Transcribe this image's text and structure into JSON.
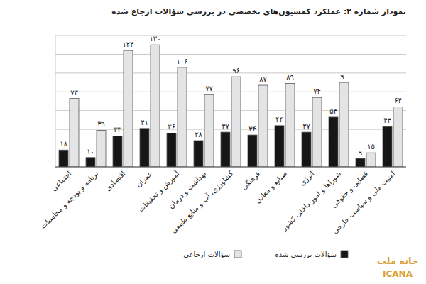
{
  "chart_data": {
    "type": "bar",
    "title": "نمودار شماره ۲: عملکرد کمسیون‌های تخصصی در بررسی سؤالات ارجاع شده",
    "categories": [
      "اجتماعی",
      "برنامه و بودجه و محاسبات",
      "اقتصادی",
      "عمران",
      "آموزش و تحقیقات",
      "بهداشت و درمان",
      "کشاورزی، آب و منابع طبیعی",
      "فرهنگی",
      "صنایع و معادن",
      "انرژی",
      "شوراها و امور داخلی کشور",
      "قضایی و حقوقی",
      "امنیت ملی و سیاست خارجی"
    ],
    "series": [
      {
        "name": "سؤالات ارجاعی",
        "color": "#e4e4e4",
        "values": [
          73,
          39,
          124,
          130,
          106,
          77,
          96,
          87,
          89,
          74,
          90,
          15,
          64
        ],
        "value_labels": [
          "۷۳",
          "۳۹",
          "۱۲۴",
          "۱۳۰",
          "۱۰۶",
          "۷۷",
          "۹۶",
          "۸۷",
          "۸۹",
          "۷۴",
          "۹۰",
          "۱۵",
          "۶۴"
        ]
      },
      {
        "name": "سؤالات بررسی شده",
        "color": "#161616",
        "values": [
          18,
          10,
          33,
          41,
          36,
          28,
          37,
          34,
          44,
          37,
          53,
          9,
          43
        ],
        "value_labels": [
          "۱۸",
          "۱۰",
          "۳۳",
          "۴۱",
          "۳۶",
          "۲۸",
          "۳۷",
          "۳۴",
          "۴۴",
          "۳۷",
          "۵۳",
          "۹",
          "۴۳"
        ]
      }
    ],
    "ylim": [
      0,
      140
    ],
    "yticks": [
      0,
      20,
      40,
      60,
      80,
      100,
      120,
      140
    ],
    "grid": true,
    "tick_labels": false,
    "data_labels": true,
    "legend": "bottom",
    "annotations": [
      "خانه ملت",
      "ICANA"
    ]
  }
}
